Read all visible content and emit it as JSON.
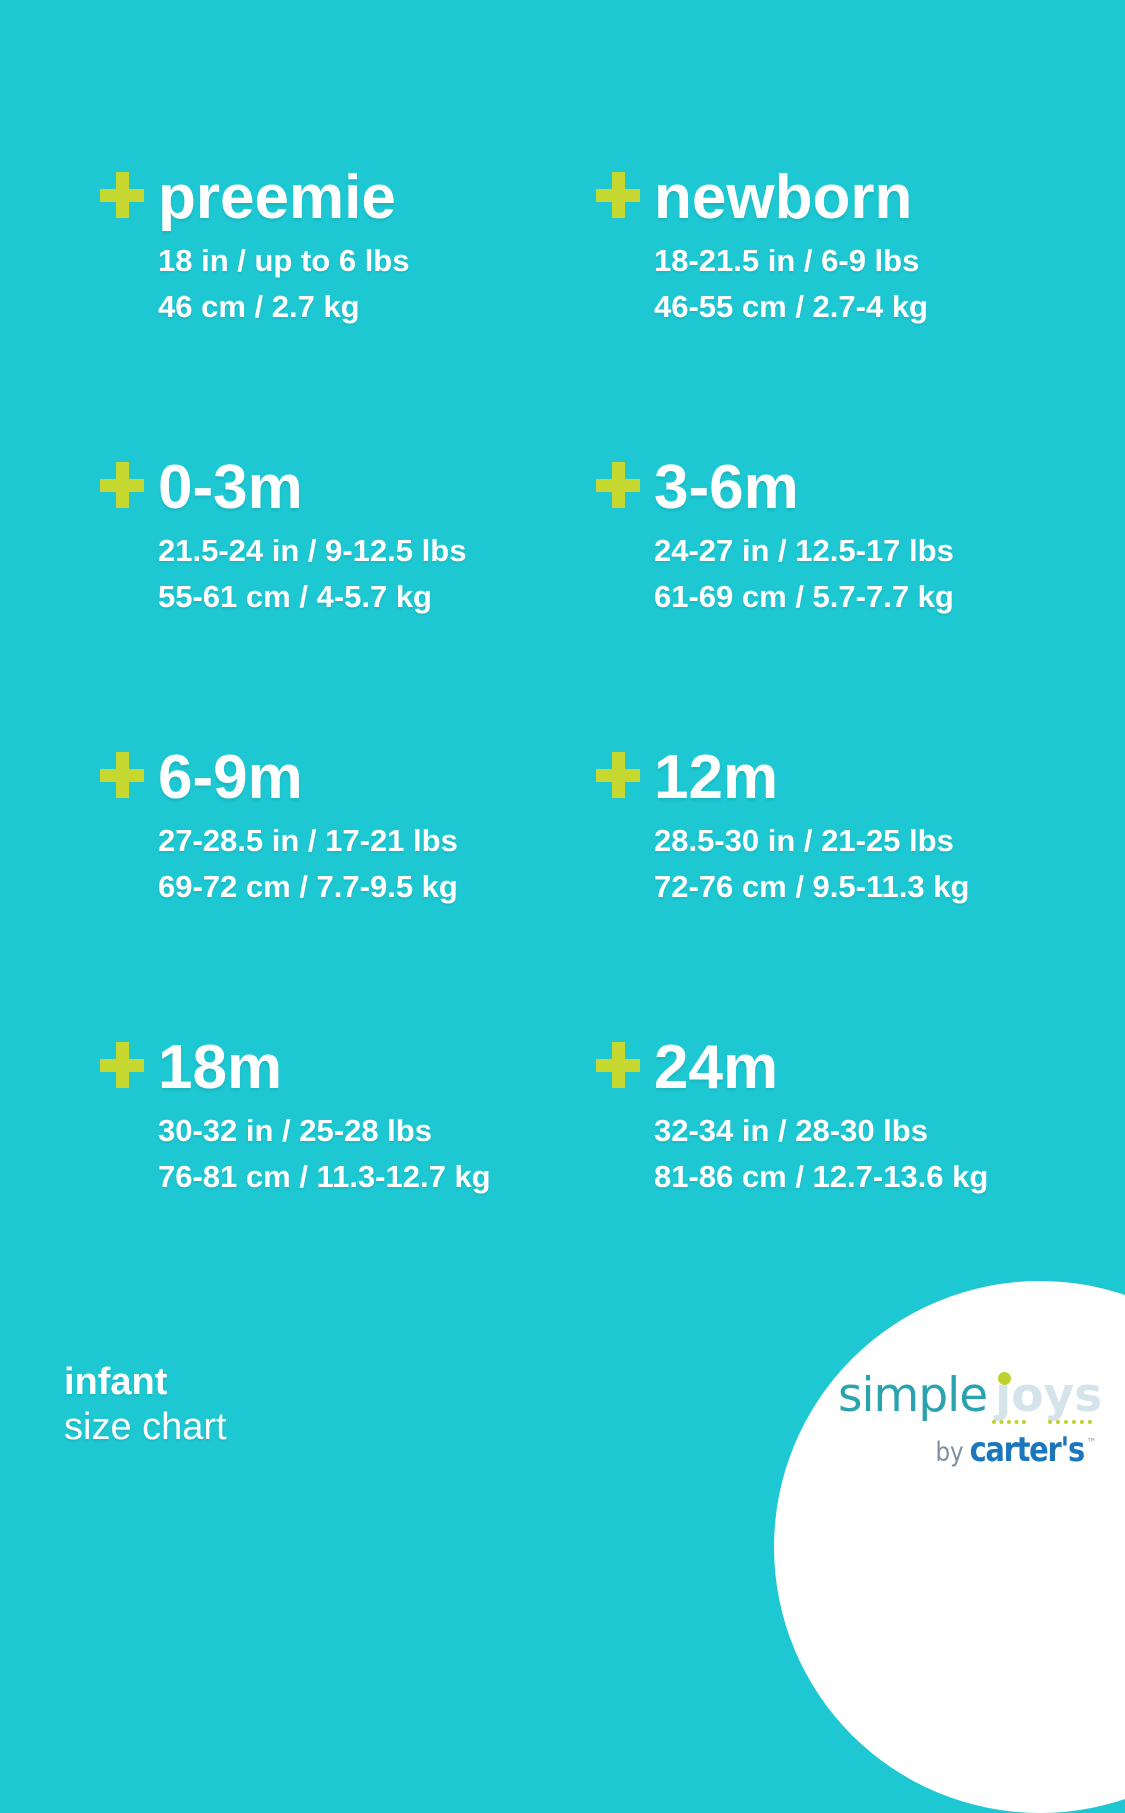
{
  "colors": {
    "background": "#1ec8d2",
    "plus": "#c6d830",
    "text": "#ffffff",
    "logo_simple": "#2ba3ae",
    "logo_joys": "#d5e4ea",
    "logo_dot": "#bed22f",
    "logo_by": "#7e909e",
    "logo_brand": "#1b76bc",
    "logo_tm": "#97a5ae"
  },
  "size_chart": {
    "entries": [
      {
        "label": "preemie",
        "imperial": "18 in / up to 6 lbs",
        "metric": "46 cm / 2.7 kg"
      },
      {
        "label": "newborn",
        "imperial": "18-21.5 in / 6-9 lbs",
        "metric": "46-55 cm / 2.7-4 kg"
      },
      {
        "label": "0-3m",
        "imperial": "21.5-24 in / 9-12.5 lbs",
        "metric": "55-61 cm / 4-5.7 kg"
      },
      {
        "label": "3-6m",
        "imperial": "24-27 in / 12.5-17 lbs",
        "metric": "61-69 cm / 5.7-7.7 kg"
      },
      {
        "label": "6-9m",
        "imperial": "27-28.5 in / 17-21 lbs",
        "metric": "69-72 cm / 7.7-9.5 kg"
      },
      {
        "label": "12m",
        "imperial": "28.5-30 in / 21-25 lbs",
        "metric": "72-76 cm / 9.5-11.3 kg"
      },
      {
        "label": "18m",
        "imperial": "30-32 in / 25-28 lbs",
        "metric": "76-81 cm / 11.3-12.7 kg"
      },
      {
        "label": "24m",
        "imperial": "32-34 in / 28-30 lbs",
        "metric": "81-86 cm / 12.7-13.6 kg"
      }
    ]
  },
  "footer": {
    "category": "infant",
    "title": "size chart"
  },
  "logo": {
    "simple": "simple",
    "joys_word": "joys",
    "joys_j": "ȷ",
    "joys_rest": "oys",
    "by": "by",
    "brand": "carter's",
    "trademark": "™"
  }
}
